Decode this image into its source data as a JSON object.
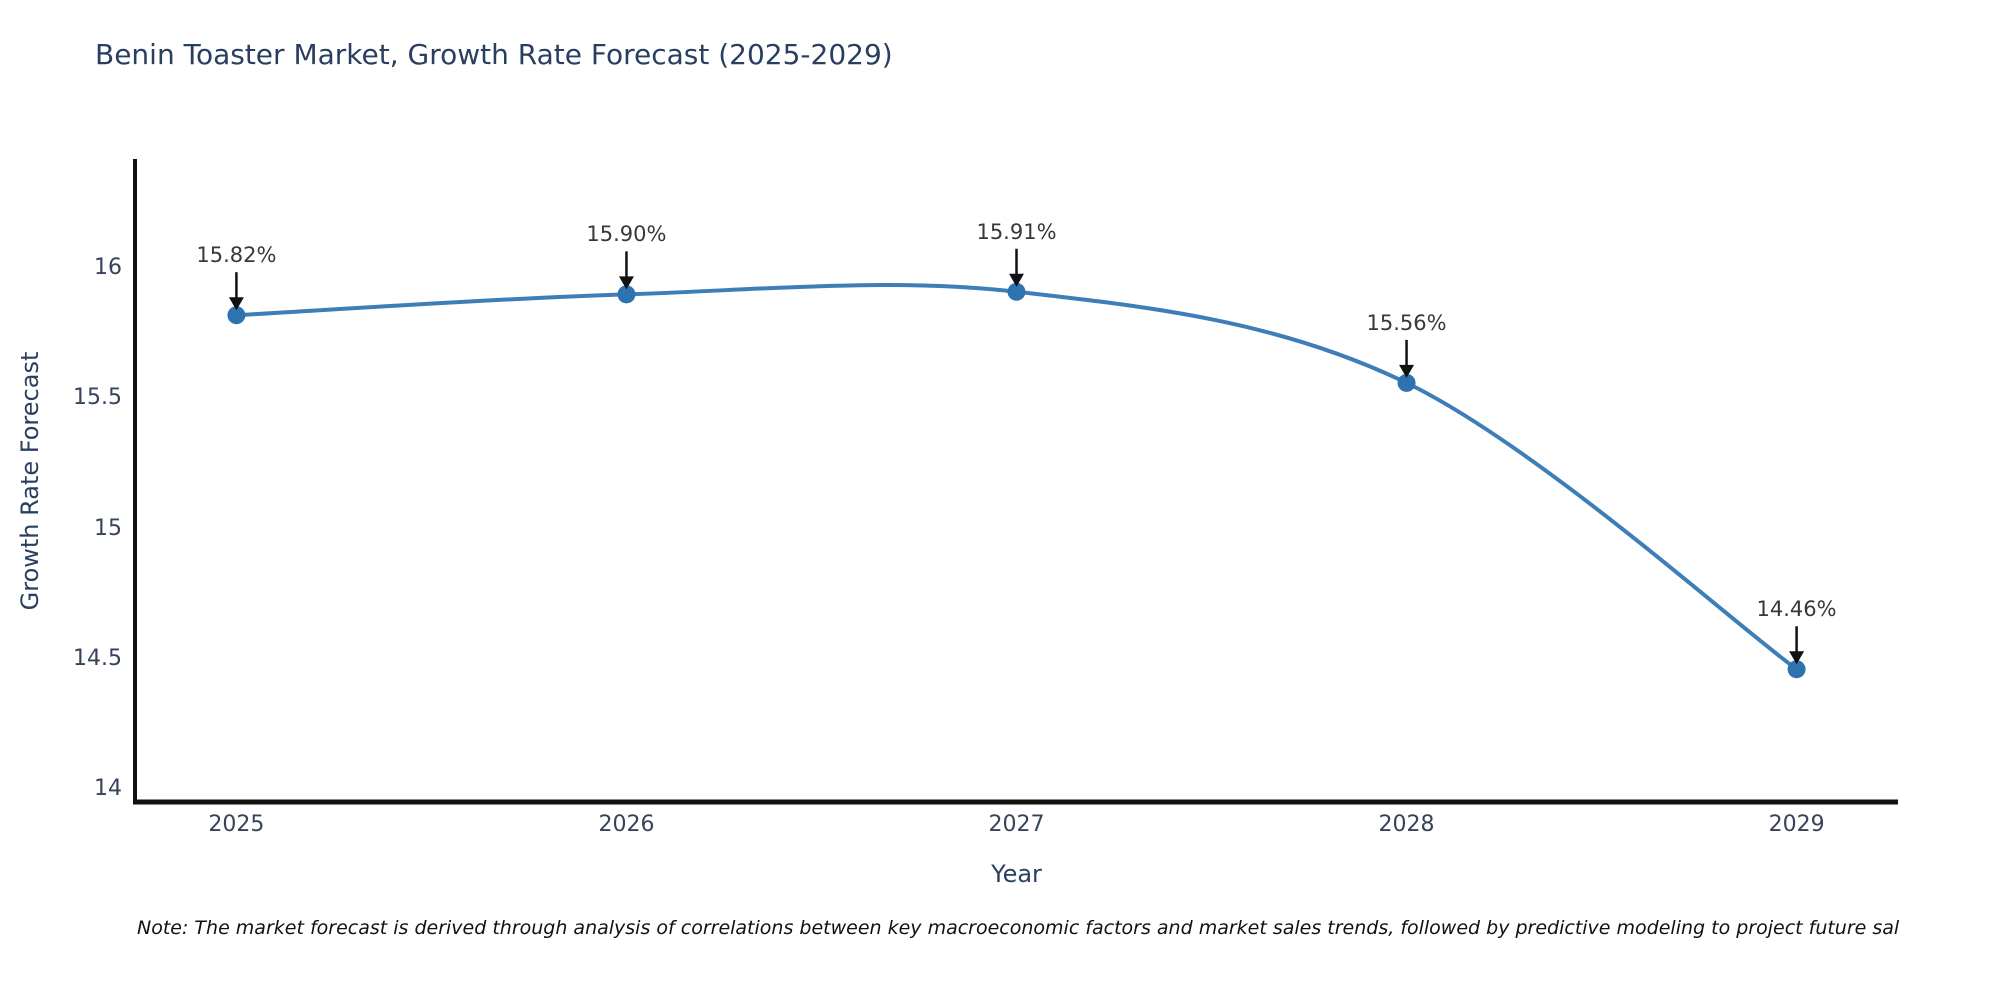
{
  "chart": {
    "title": "Benin Toaster Market, Growth Rate Forecast (2025-2029)",
    "xaxis_title": "Year",
    "yaxis_title": "Growth Rate Forecast",
    "note": "Note: The market forecast is derived through analysis of correlations between key macroeconomic factors and market sales trends, followed by predictive modeling to project future sal"
  },
  "chart_data": {
    "type": "line",
    "title": "Benin Toaster Market, Growth Rate Forecast (2025-2029)",
    "xlabel": "Year",
    "ylabel": "Growth Rate Forecast",
    "x": [
      2025,
      2026,
      2027,
      2028,
      2029
    ],
    "x_labels": [
      "2025",
      "2026",
      "2027",
      "2028",
      "2029"
    ],
    "values": [
      15.82,
      15.9,
      15.91,
      15.56,
      14.46
    ],
    "point_labels": [
      "15.82%",
      "15.90%",
      "15.91%",
      "15.56%",
      "14.46%"
    ],
    "yticks": [
      16,
      15.5,
      15,
      14.5,
      14
    ],
    "ytick_labels": [
      "16",
      "15.5",
      "15",
      "14.5",
      "14"
    ],
    "ylim": [
      13.95,
      16.42
    ],
    "xlim": [
      2024.74,
      2029.26
    ],
    "grid": false,
    "legend": "none",
    "line_color": "#3d7db8",
    "marker_color": "#2f72b0",
    "axis_color": "#111111",
    "annotation_color": "#111111"
  }
}
